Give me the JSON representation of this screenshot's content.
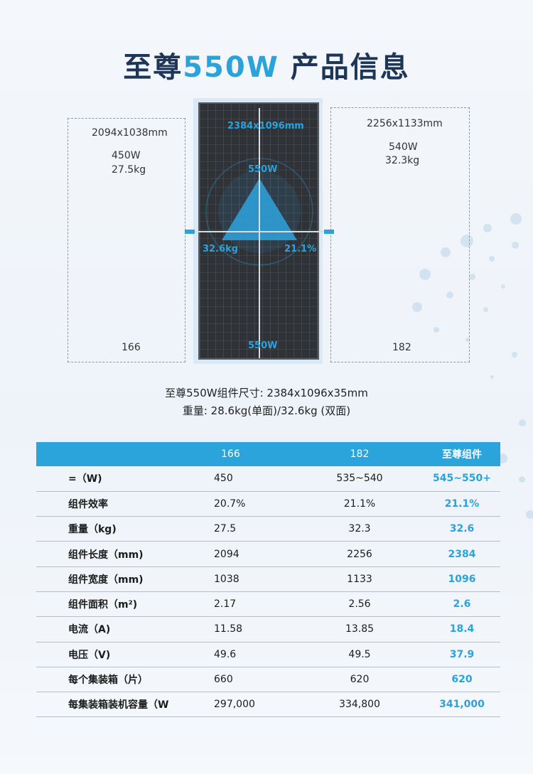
{
  "title": {
    "prefix": "至尊",
    "highlight": "550W",
    "suffix": "产品信息"
  },
  "comparison": {
    "left": {
      "size": "2094x1038mm",
      "power": "450W",
      "weight": "27.5kg",
      "model": "166"
    },
    "right": {
      "size": "2256x1133mm",
      "power": "540W",
      "weight": "32.3kg",
      "model": "182"
    },
    "center": {
      "size": "2384x1096mm",
      "power_top": "550W",
      "weight": "32.6kg",
      "efficiency": "21.1%",
      "power_bottom": "550W"
    }
  },
  "caption": {
    "line1": "至尊550W组件尺寸: 2384x1096x35mm",
    "line2": "重量: 28.6kg(单面)/32.6kg (双面)"
  },
  "colors": {
    "accent": "#2ba4dc",
    "title": "#1d3557"
  },
  "table": {
    "headers": [
      "",
      "166",
      "182",
      "至尊组件"
    ],
    "rows": [
      {
        "label": "=（W)",
        "v166": "450",
        "v182": "535~540",
        "vstar": "545~550+"
      },
      {
        "label": "组件效率",
        "v166": "20.7%",
        "v182": "21.1%",
        "vstar": "21.1%"
      },
      {
        "label": "重量（kg)",
        "v166": "27.5",
        "v182": "32.3",
        "vstar": "32.6"
      },
      {
        "label": "组件长度（mm)",
        "v166": "2094",
        "v182": "2256",
        "vstar": "2384"
      },
      {
        "label": "组件宽度（mm)",
        "v166": "1038",
        "v182": "1133",
        "vstar": "1096"
      },
      {
        "label": "组件面积（m²)",
        "v166": "2.17",
        "v182": "2.56",
        "vstar": "2.6"
      },
      {
        "label": "电流（A)",
        "v166": "11.58",
        "v182": "13.85",
        "vstar": "18.4"
      },
      {
        "label": "电压（V)",
        "v166": "49.6",
        "v182": "49.5",
        "vstar": "37.9"
      },
      {
        "label": "每个集装箱（片）",
        "v166": "660",
        "v182": "620",
        "vstar": "620"
      },
      {
        "label": "每集装箱装机容量（W",
        "v166": "297,000",
        "v182": "334,800",
        "vstar": "341,000"
      }
    ]
  }
}
